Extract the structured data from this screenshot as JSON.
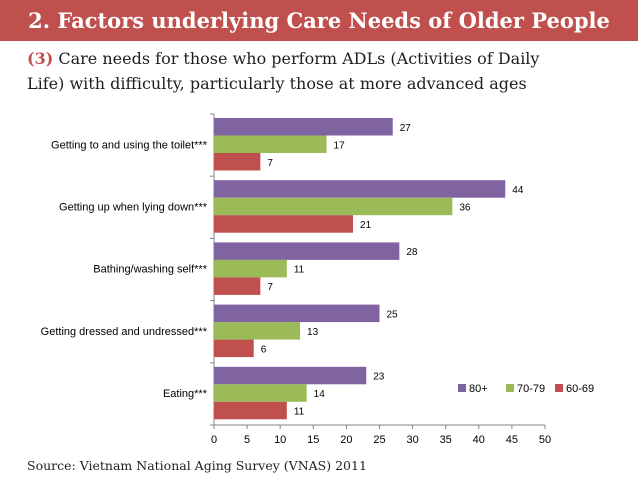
{
  "title": "2. Factors underlying Care Needs of Older People",
  "subtitle": {
    "number": "(3)",
    "line1": "Care needs for those who perform ADLs (Activities of Daily",
    "line2": "Life) with difficulty, particularly those at more advanced ages"
  },
  "source": "Source: Vietnam National Aging Survey (VNAS) 2011",
  "chart_data": {
    "type": "bar",
    "orientation": "horizontal",
    "title": "",
    "xlabel": "",
    "ylabel": "",
    "xlim": [
      0,
      50
    ],
    "xticks": [
      0,
      5,
      10,
      15,
      20,
      25,
      30,
      35,
      40,
      45,
      50
    ],
    "legend_position": "bottom-right",
    "categories": [
      "Getting to and using the toilet***",
      "Getting up when lying down***",
      "Bathing/washing self***",
      "Getting dressed and undressed***",
      "Eating***"
    ],
    "series": [
      {
        "name": "80+",
        "color": "#8064a2",
        "values": [
          27,
          44,
          28,
          25,
          23
        ]
      },
      {
        "name": "70-79",
        "color": "#9bbb59",
        "values": [
          17,
          36,
          11,
          13,
          14
        ]
      },
      {
        "name": "60-69",
        "color": "#c0504d",
        "values": [
          7,
          21,
          7,
          6,
          11
        ]
      }
    ]
  }
}
